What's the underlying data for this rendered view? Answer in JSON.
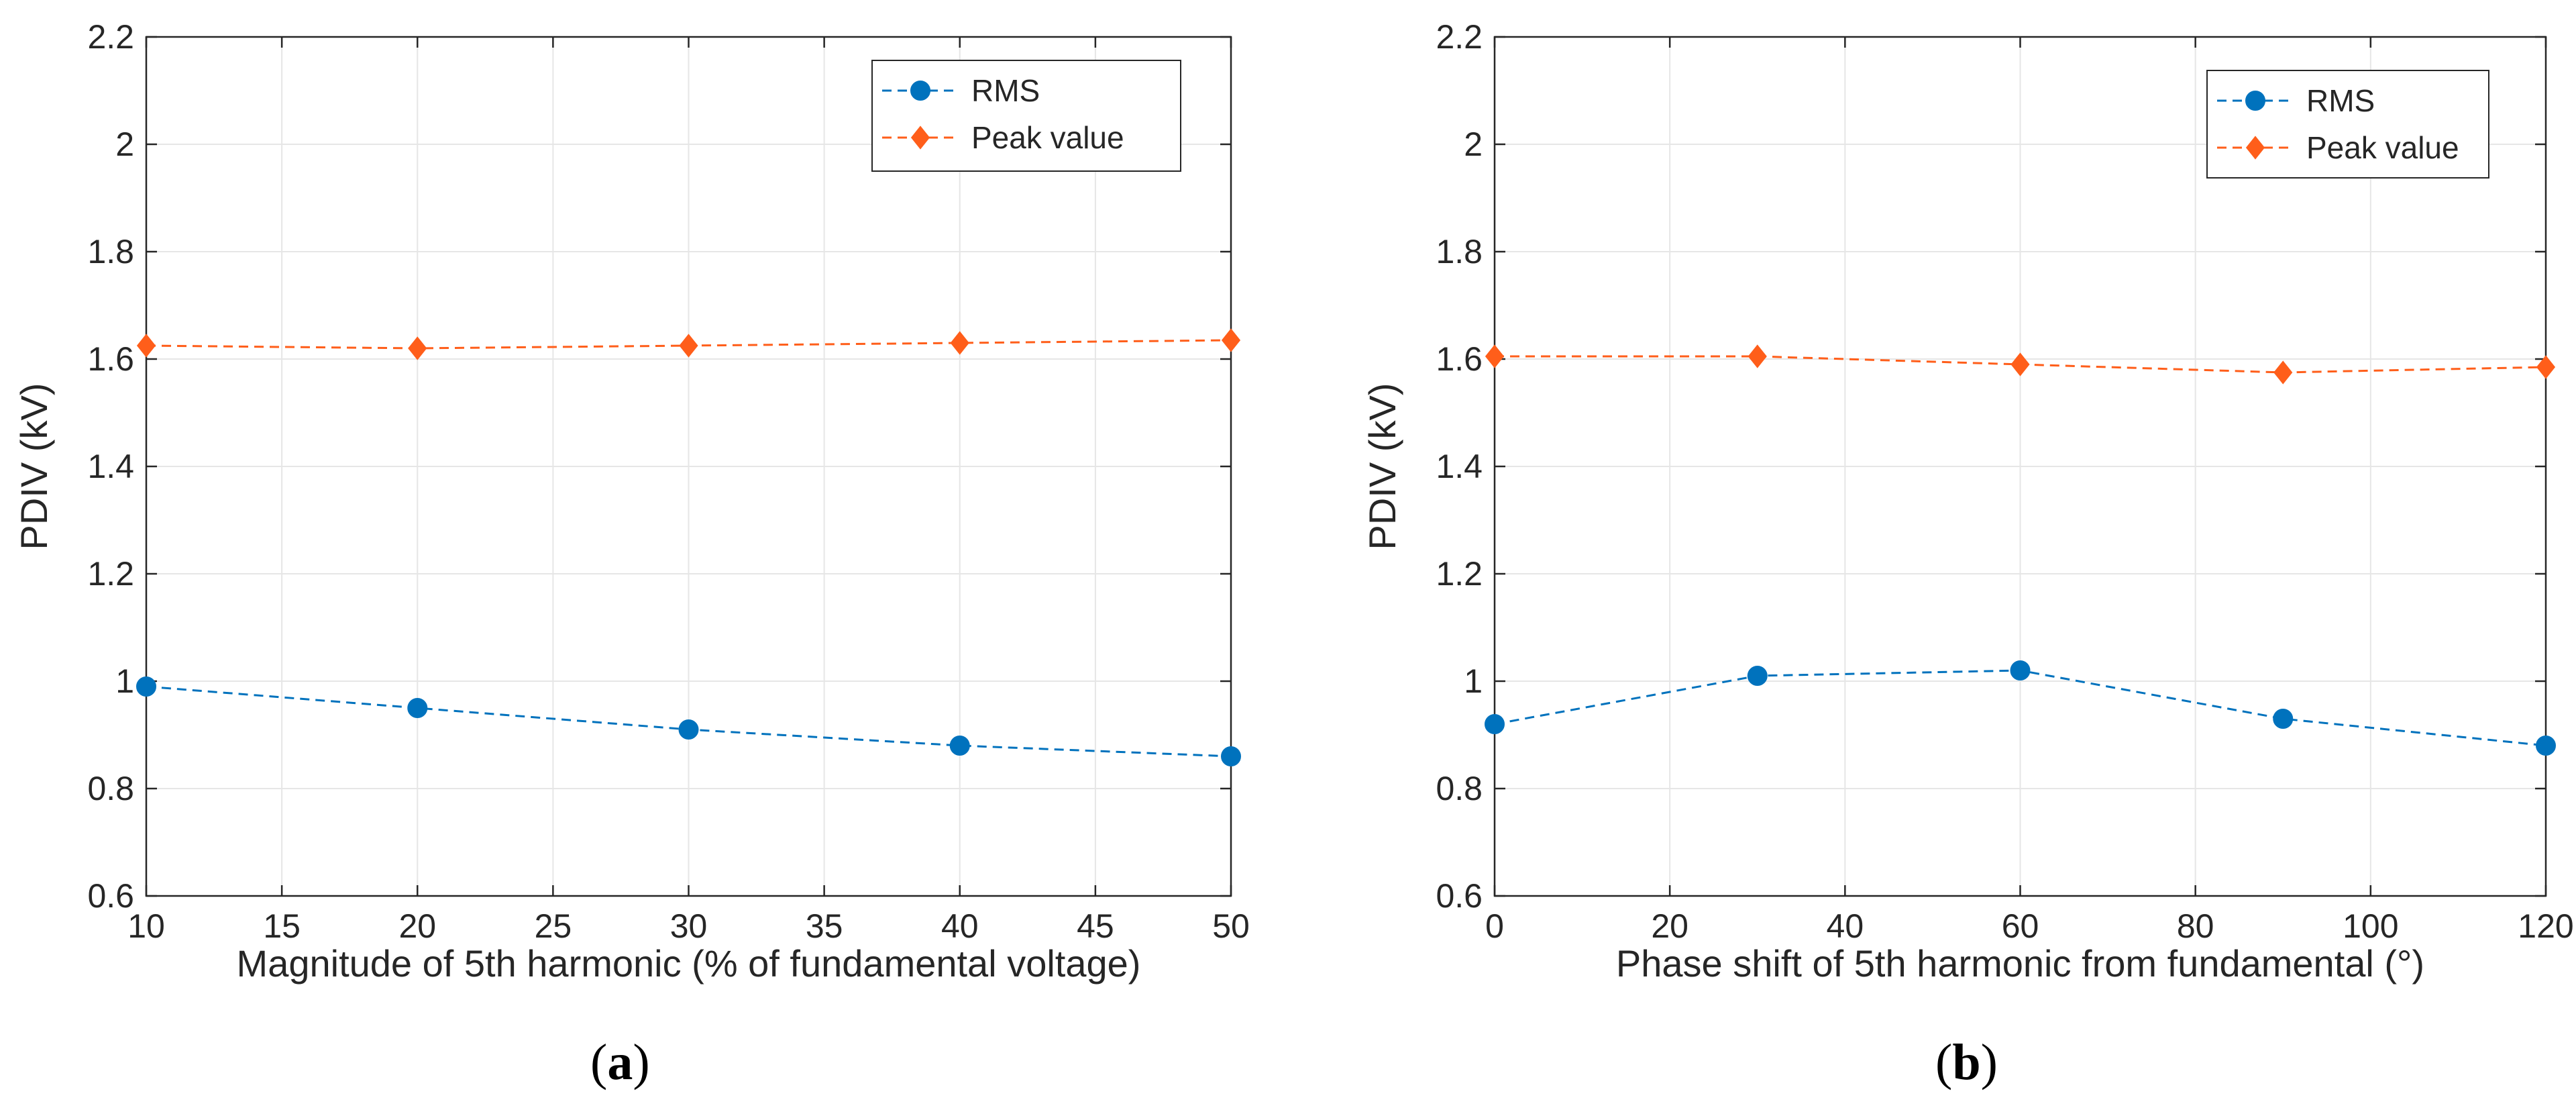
{
  "figure": {
    "captions": [
      "(a)",
      "(b)"
    ],
    "caption_letters": [
      "a",
      "b"
    ]
  },
  "chart_data": [
    {
      "type": "line",
      "title": "",
      "xlabel": "Magnitude of 5th harmonic (% of fundamental voltage)",
      "ylabel": "PDIV (kV)",
      "xlim": [
        10,
        50
      ],
      "ylim": [
        0.6,
        2.2
      ],
      "xticks": [
        10,
        15,
        20,
        25,
        30,
        35,
        40,
        45,
        50
      ],
      "xtick_labels": [
        "10",
        "15",
        "20",
        "25",
        "30",
        "35",
        "40",
        "45",
        "50"
      ],
      "yticks": [
        0.6,
        0.8,
        1.0,
        1.2,
        1.4,
        1.6,
        1.8,
        2.0,
        2.2
      ],
      "ytick_labels": [
        "0.6",
        "0.8",
        "1",
        "1.2",
        "1.4",
        "1.6",
        "1.8",
        "2",
        "2.2"
      ],
      "grid": true,
      "legend_position": "top-right",
      "x": [
        10,
        20,
        30,
        40,
        50
      ],
      "series": [
        {
          "name": "RMS",
          "values": [
            0.99,
            0.95,
            0.91,
            0.88,
            0.86
          ],
          "color": "#0072BD",
          "marker": "circle"
        },
        {
          "name": "Peak value",
          "values": [
            1.625,
            1.62,
            1.625,
            1.63,
            1.635
          ],
          "color": "#FF5E1A",
          "marker": "diamond"
        }
      ]
    },
    {
      "type": "line",
      "title": "",
      "xlabel": "Phase shift of 5th harmonic from fundamental (°)",
      "ylabel": "PDIV (kV)",
      "xlim": [
        0,
        120
      ],
      "ylim": [
        0.6,
        2.2
      ],
      "xticks": [
        0,
        20,
        40,
        60,
        80,
        100,
        120
      ],
      "xtick_labels": [
        "0",
        "20",
        "40",
        "60",
        "80",
        "100",
        "120"
      ],
      "yticks": [
        0.6,
        0.8,
        1.0,
        1.2,
        1.4,
        1.6,
        1.8,
        2.0,
        2.2
      ],
      "ytick_labels": [
        "0.6",
        "0.8",
        "1",
        "1.2",
        "1.4",
        "1.6",
        "1.8",
        "2",
        "2.2"
      ],
      "grid": true,
      "legend_position": "top-right",
      "x": [
        0,
        30,
        60,
        90,
        120
      ],
      "series": [
        {
          "name": "RMS",
          "values": [
            0.92,
            1.01,
            1.02,
            0.93,
            0.88
          ],
          "color": "#0072BD",
          "marker": "circle"
        },
        {
          "name": "Peak value",
          "values": [
            1.605,
            1.605,
            1.59,
            1.575,
            1.585
          ],
          "color": "#FF5E1A",
          "marker": "diamond"
        }
      ]
    }
  ]
}
